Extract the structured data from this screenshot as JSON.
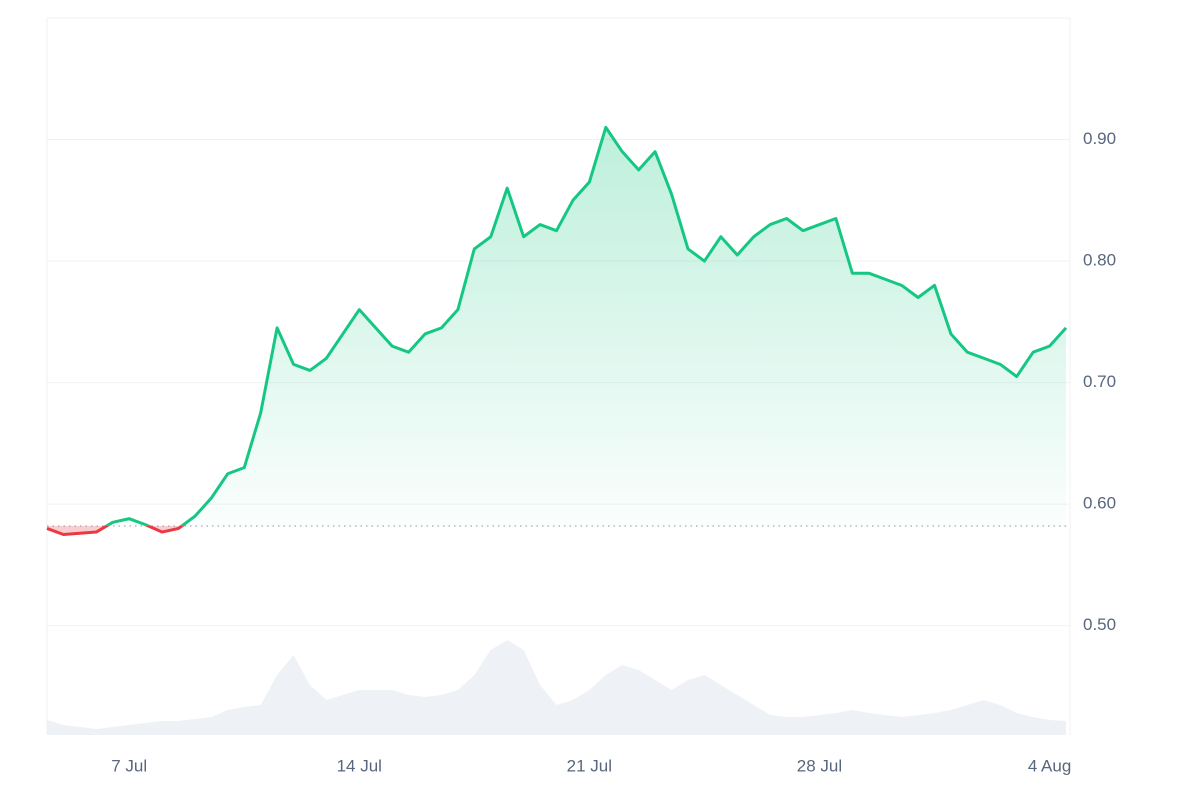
{
  "chart_data": {
    "type": "line",
    "categories": [
      null,
      null,
      null,
      null,
      null,
      "7 Jul",
      null,
      null,
      null,
      null,
      null,
      null,
      null,
      null,
      null,
      null,
      null,
      null,
      null,
      "14 Jul",
      null,
      null,
      null,
      null,
      null,
      null,
      null,
      null,
      null,
      null,
      null,
      null,
      null,
      "21 Jul",
      null,
      null,
      null,
      null,
      null,
      null,
      null,
      null,
      null,
      null,
      null,
      null,
      null,
      "28 Jul",
      null,
      null,
      null,
      null,
      null,
      null,
      null,
      null,
      null,
      null,
      null,
      null,
      null,
      "4 Aug",
      null
    ],
    "values": [
      0.58,
      0.575,
      0.576,
      0.577,
      0.585,
      0.588,
      0.583,
      0.577,
      0.58,
      0.59,
      0.605,
      0.625,
      0.63,
      0.675,
      0.745,
      0.715,
      0.71,
      0.72,
      0.74,
      0.76,
      0.745,
      0.73,
      0.725,
      0.74,
      0.745,
      0.76,
      0.81,
      0.82,
      0.86,
      0.82,
      0.83,
      0.825,
      0.85,
      0.865,
      0.91,
      0.89,
      0.875,
      0.89,
      0.855,
      0.81,
      0.8,
      0.82,
      0.805,
      0.82,
      0.83,
      0.835,
      0.825,
      0.83,
      0.835,
      0.79,
      0.79,
      0.785,
      0.78,
      0.77,
      0.78,
      0.74,
      0.725,
      0.72,
      0.715,
      0.705,
      0.725,
      0.73,
      0.745
    ],
    "baseline": 0.582,
    "up_color": "#16c784",
    "down_color": "#ea3943",
    "volume": [
      15,
      10,
      8,
      6,
      8,
      10,
      12,
      14,
      14,
      16,
      18,
      25,
      28,
      30,
      60,
      80,
      50,
      35,
      40,
      45,
      45,
      45,
      40,
      38,
      40,
      45,
      60,
      85,
      95,
      85,
      50,
      30,
      35,
      45,
      60,
      70,
      65,
      55,
      45,
      55,
      60,
      50,
      40,
      30,
      20,
      18,
      18,
      20,
      22,
      25,
      22,
      20,
      18,
      20,
      22,
      25,
      30,
      35,
      30,
      22,
      18,
      15,
      14
    ],
    "volume_color": "#eef1f5",
    "ylim": [
      0.41,
      1.0
    ],
    "yticks": [
      {
        "value": 0.5,
        "label": "0.50"
      },
      {
        "value": 0.6,
        "label": "0.60"
      },
      {
        "value": 0.7,
        "label": "0.70"
      },
      {
        "value": 0.8,
        "label": "0.80"
      },
      {
        "value": 0.9,
        "label": "0.90"
      }
    ],
    "grid": true
  }
}
